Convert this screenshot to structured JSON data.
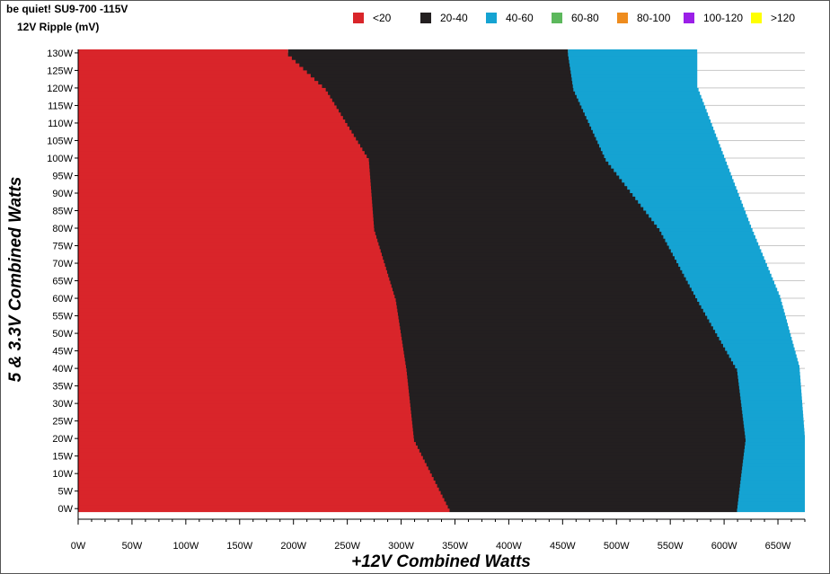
{
  "header": {
    "title": "be quiet! SU9-700 -115V",
    "subtitle": "12V Ripple (mV)"
  },
  "chart_data": {
    "type": "heatmap",
    "title": "be quiet! SU9-700 -115V",
    "subtitle": "12V Ripple (mV)",
    "xlabel": "+12V Combined Watts",
    "ylabel": "5 & 3.3V Combined Watts",
    "xlim": [
      0,
      675
    ],
    "ylim": [
      -2,
      131
    ],
    "x_ticks": [
      "0W",
      "50W",
      "100W",
      "150W",
      "200W",
      "250W",
      "300W",
      "350W",
      "400W",
      "450W",
      "500W",
      "550W",
      "600W",
      "650W"
    ],
    "y_ticks": [
      "0W",
      "5W",
      "10W",
      "15W",
      "20W",
      "25W",
      "30W",
      "35W",
      "40W",
      "45W",
      "50W",
      "55W",
      "60W",
      "65W",
      "70W",
      "75W",
      "80W",
      "85W",
      "90W",
      "95W",
      "100W",
      "105W",
      "110W",
      "115W",
      "120W",
      "125W",
      "130W"
    ],
    "legend_position": "top",
    "categories": [
      {
        "label": "<20",
        "color": "#d9252a"
      },
      {
        "label": "20-40",
        "color": "#231f20"
      },
      {
        "label": "40-60",
        "color": "#15a3d2"
      },
      {
        "label": "60-80",
        "color": "#5cb85c"
      },
      {
        "label": "80-100",
        "color": "#ee8c1e"
      },
      {
        "label": "100-120",
        "color": "#9b1fe8"
      },
      {
        "label": ">120",
        "color": "#ffff00"
      }
    ],
    "region_boundaries": [
      {
        "y": 0,
        "below20_max_x": 345,
        "max_x_40_60_from": 612,
        "max_load_x": 675
      },
      {
        "y": 20,
        "below20_max_x": 312,
        "max_x_40_60_from": 620,
        "max_load_x": 675
      },
      {
        "y": 40,
        "below20_max_x": 305,
        "max_x_40_60_from": 612,
        "max_load_x": 670
      },
      {
        "y": 60,
        "below20_max_x": 295,
        "max_x_40_60_from": 575,
        "max_load_x": 652
      },
      {
        "y": 80,
        "below20_max_x": 275,
        "max_x_40_60_from": 540,
        "max_load_x": 625
      },
      {
        "y": 100,
        "below20_max_x": 270,
        "max_x_40_60_from": 490,
        "max_load_x": 600
      },
      {
        "y": 120,
        "below20_max_x": 230,
        "max_x_40_60_from": 460,
        "max_load_x": 575
      },
      {
        "y": 130,
        "below20_max_x": 195,
        "max_x_40_60_from": 455,
        "max_load_x": 575
      }
    ]
  }
}
